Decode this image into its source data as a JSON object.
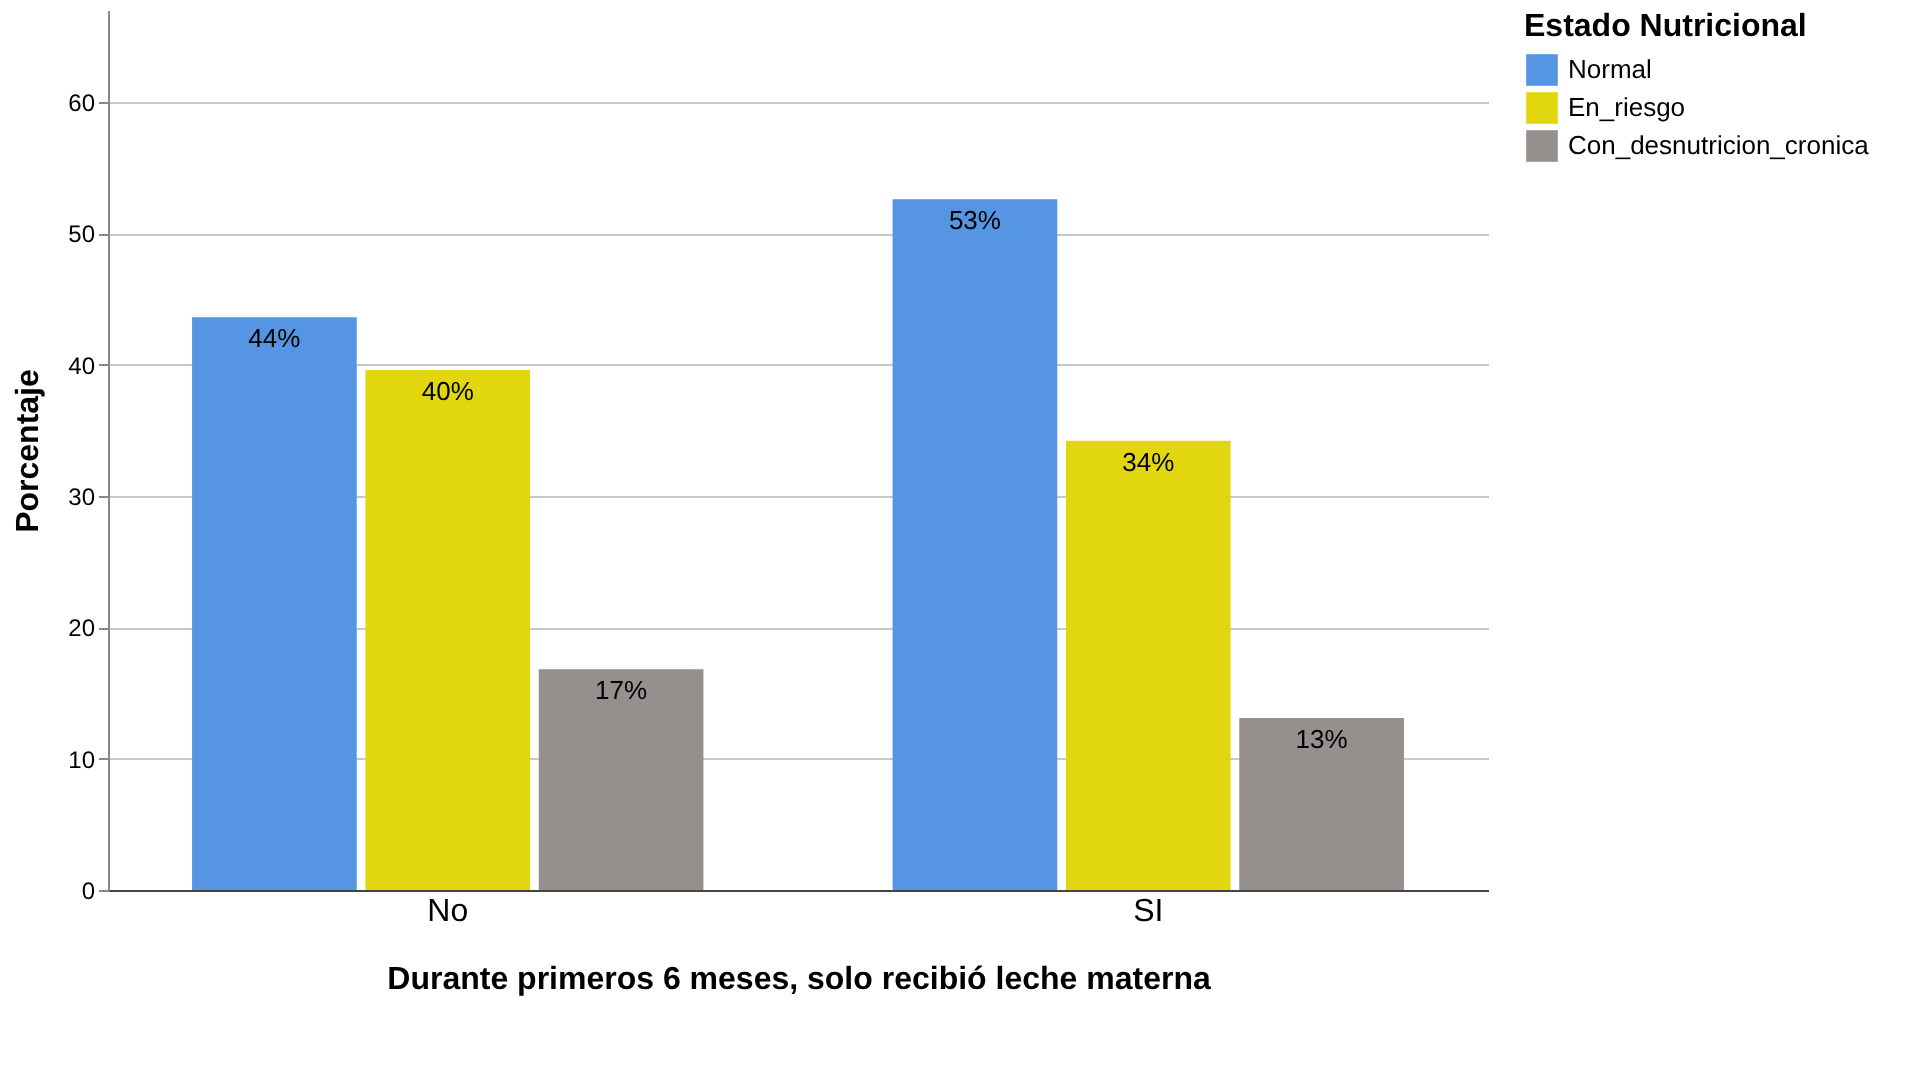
{
  "chart_data": {
    "type": "bar",
    "xlabel": "Durante primeros 6 meses, solo recibió leche materna",
    "ylabel": "Porcentaje",
    "legend_title": "Estado Nutricional",
    "categories": [
      "No",
      "SI"
    ],
    "series": [
      {
        "name": "Normal",
        "color": "#5595e3",
        "values": [
          43.6,
          52.6
        ],
        "value_labels": [
          "44%",
          "53%"
        ]
      },
      {
        "name": "En_riesgo",
        "color": "#e2d70f",
        "values": [
          39.6,
          34.2
        ],
        "value_labels": [
          "40%",
          "34%"
        ]
      },
      {
        "name": "Con_desnutricion_cronica",
        "color": "#958f8e",
        "values": [
          16.8,
          13.1
        ],
        "value_labels": [
          "17%",
          "13%"
        ]
      }
    ],
    "ylim": [
      0,
      67
    ],
    "yticks": [
      0,
      10,
      20,
      30,
      40,
      50,
      60
    ],
    "grid": "y",
    "legend": "top right"
  }
}
